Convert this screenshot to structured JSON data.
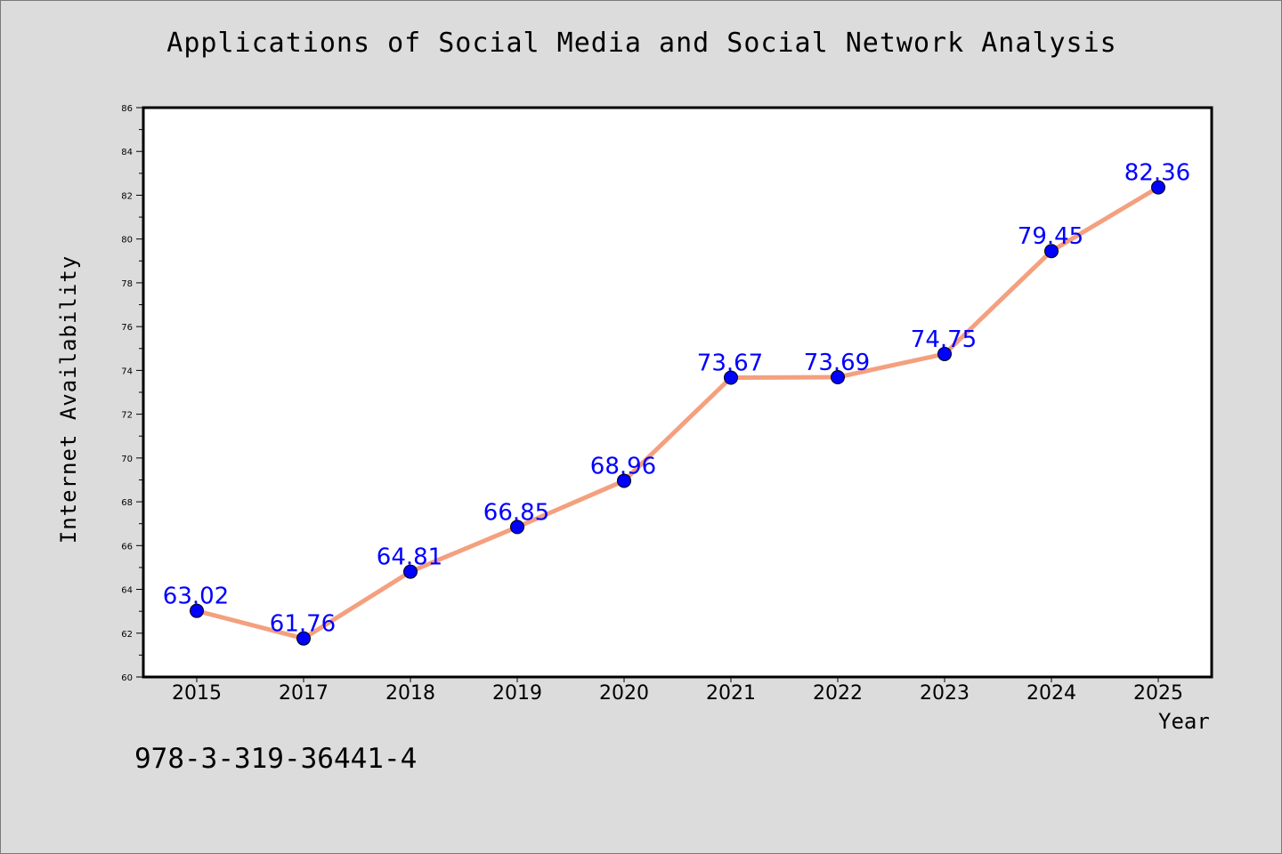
{
  "chart_data": {
    "type": "line",
    "title": "Applications of Social Media and Social Network Analysis",
    "xlabel": "Year",
    "ylabel": "Internet Availability",
    "categories": [
      "2015",
      "2017",
      "2018",
      "2019",
      "2020",
      "2021",
      "2022",
      "2023",
      "2024",
      "2025"
    ],
    "values": [
      63.02,
      61.76,
      64.81,
      66.85,
      68.96,
      73.67,
      73.69,
      74.75,
      79.45,
      82.36
    ],
    "data_labels": [
      "63.02",
      "61.76",
      "64.81",
      "66.85",
      "68.96",
      "73.67",
      "73.69",
      "74.75",
      "79.45",
      "82.36"
    ],
    "ylim": [
      60,
      86
    ],
    "yticks": [
      "60",
      "62",
      "64",
      "66",
      "68",
      "70",
      "72",
      "74",
      "76",
      "78",
      "80",
      "82",
      "84",
      "86"
    ],
    "grid": false,
    "line_color": "#f4a07f",
    "marker_color": "#0000ff",
    "label_color": "#0000ff",
    "background_color": "#dcdcdc",
    "plot_background_color": "#ffffff"
  },
  "footnote": "978-3-319-36441-4"
}
